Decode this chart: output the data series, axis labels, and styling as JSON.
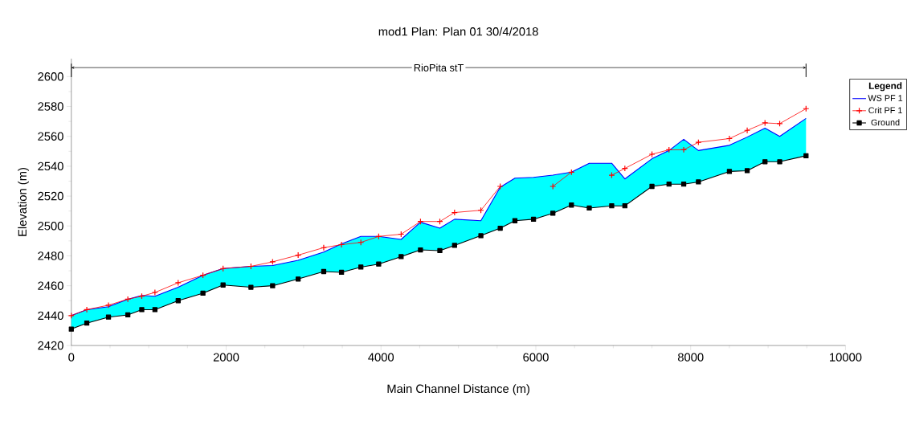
{
  "chart_data": {
    "type": "line",
    "title": "mod1 Plan: Plan 01 30/4/2018",
    "xlabel": "Main Channel Distance (m)",
    "ylabel": "Elevation (m)",
    "legend_title": "Legend",
    "legend": "right",
    "x": [
      0,
      200,
      480,
      730,
      910,
      1080,
      1380,
      1700,
      1960,
      2320,
      2600,
      2930,
      3260,
      3490,
      3740,
      3970,
      4260,
      4510,
      4760,
      4950,
      5290,
      5540,
      5730,
      5970,
      6220,
      6460,
      6690,
      6980,
      7150,
      7500,
      7720,
      7910,
      8100,
      8500,
      8730,
      8960,
      9150,
      9490
    ],
    "series": [
      {
        "name": "WS  PF 1",
        "color": "#0000ff",
        "marker": "none",
        "values": [
          2440,
          2444,
          2446,
          2451,
          2453.5,
          2453,
          2459,
          2467,
          2471.5,
          2473,
          2473.5,
          2477,
          2482.5,
          2488,
          2493,
          2493,
          2491,
          2502.5,
          2498.5,
          2504.5,
          2503.5,
          2526,
          2532,
          2532.5,
          2534,
          2536,
          2542,
          2542,
          2531.5,
          2545,
          2550.5,
          2558,
          2550.5,
          2554,
          2559.5,
          2565.5,
          2560,
          2572
        ],
        "upper": [
          2440,
          2444,
          2446,
          2451,
          2453.5,
          2453,
          2459,
          2467,
          2471.5,
          2473,
          2473.5,
          2477,
          2482.5,
          2488,
          2493,
          2493,
          2491,
          2502.5,
          2498.5,
          2504.5,
          2503.5,
          2526,
          2532,
          2532.5,
          2534,
          2536,
          2542,
          2542,
          2531.5,
          2545,
          2550.5,
          2558,
          2550.5,
          2554,
          2559.5,
          2565.5,
          2560,
          2572
        ],
        "lower": [
          2431,
          2435,
          2439,
          2440.5,
          2444,
          2444,
          2450,
          2455,
          2460.5,
          2459,
          2460,
          2464.5,
          2469.5,
          2469,
          2472.5,
          2474.5,
          2479.5,
          2484,
          2483.5,
          2487,
          2493.5,
          2498.5,
          2503.5,
          2504.5,
          2508.5,
          2514,
          2512,
          2513.5,
          2513.5,
          2526.5,
          2528,
          2528,
          2529.5,
          2536.5,
          2537,
          2543,
          2543,
          2547
        ]
      },
      {
        "name": "Crit  PF 1",
        "color": "#ff0000",
        "marker": "cross",
        "values": [
          2440,
          2444,
          2447,
          2451,
          2453,
          2455.5,
          2462,
          2467,
          2471.5,
          2473,
          2476,
          2480.5,
          2485.5,
          2487.5,
          2489,
          2493,
          2494.5,
          2503,
          2503,
          2509,
          2510.5,
          2526.5,
          null,
          null,
          2526.5,
          2536,
          null,
          2534,
          2538.5,
          2548,
          2551,
          2551,
          2556,
          2558.5,
          2564,
          2569,
          2568.5,
          2578.5
        ]
      },
      {
        "name": "Ground",
        "color": "#000000",
        "marker": "square",
        "values": [
          2431,
          2435,
          2439,
          2440.5,
          2444,
          2444,
          2450,
          2455,
          2460.5,
          2459,
          2460,
          2464.5,
          2469.5,
          2469,
          2472.5,
          2474.5,
          2479.5,
          2484,
          2483.5,
          2487,
          2493.5,
          2498.5,
          2503.5,
          2504.5,
          2508.5,
          2514,
          2512,
          2513.5,
          2513.5,
          2526.5,
          2528,
          2528,
          2529.5,
          2536.5,
          2537,
          2543,
          2543,
          2547
        ]
      }
    ],
    "annotations": [
      "RioPita stT"
    ],
    "xlim": [
      0,
      10000
    ],
    "xticks": [
      0,
      2000,
      4000,
      6000,
      8000,
      10000
    ],
    "ylim": [
      2420,
      2612
    ],
    "yticks": [
      2420,
      2440,
      2460,
      2480,
      2500,
      2520,
      2540,
      2560,
      2580,
      2600
    ],
    "grid": false
  }
}
